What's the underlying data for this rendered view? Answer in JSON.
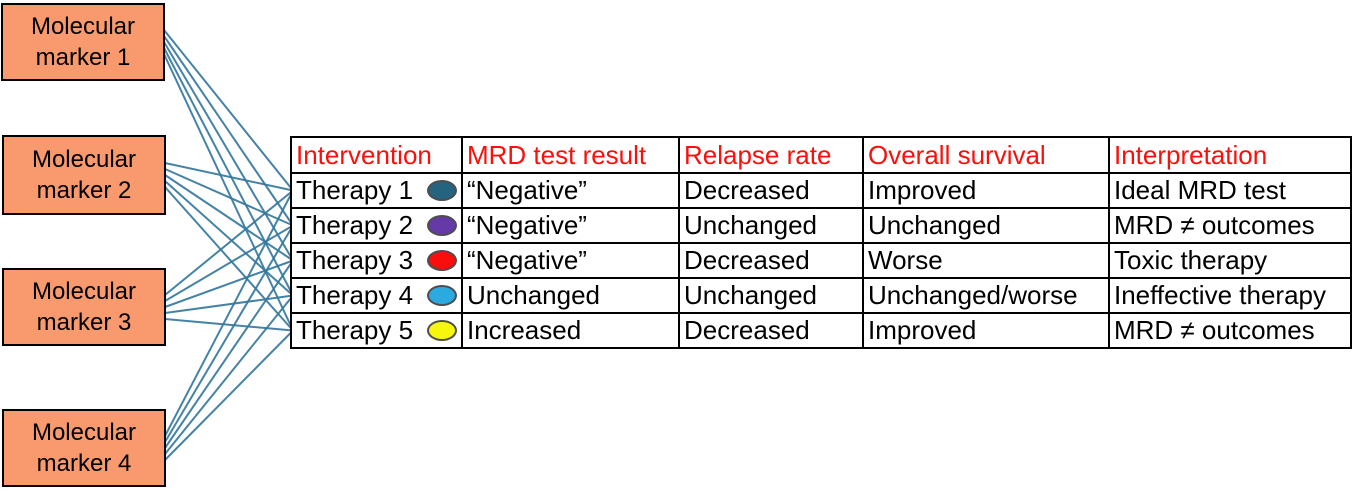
{
  "colors": {
    "marker_box_fill": "#F89A6E",
    "marker_box_border": "#000000",
    "header_text": "#FA0F0B",
    "body_text": "#000000",
    "table_border": "#000000",
    "connector": "#35789E"
  },
  "markers": [
    {
      "label": "Molecular marker 1"
    },
    {
      "label": "Molecular marker 2"
    },
    {
      "label": "Molecular marker 3"
    },
    {
      "label": "Molecular marker 4"
    }
  ],
  "table": {
    "headers": [
      "Intervention",
      "MRD test result",
      "Relapse rate",
      "Overall survival",
      "Interpretation"
    ],
    "rows": [
      {
        "intervention": "Therapy 1",
        "dot_color": "#26637F",
        "dot_name": "dark-teal",
        "mrd_test_result": "“Negative”",
        "relapse_rate": "Decreased",
        "overall_survival": "Improved",
        "interpretation": "Ideal MRD test"
      },
      {
        "intervention": "Therapy 2",
        "dot_color": "#6639A8",
        "dot_name": "purple",
        "mrd_test_result": "“Negative”",
        "relapse_rate": "Unchanged",
        "overall_survival": "Unchanged",
        "interpretation": "MRD ≠ outcomes"
      },
      {
        "intervention": "Therapy 3",
        "dot_color": "#F90D0D",
        "dot_name": "red",
        "mrd_test_result": "“Negative”",
        "relapse_rate": "Decreased",
        "overall_survival": "Worse",
        "interpretation": "Toxic therapy"
      },
      {
        "intervention": "Therapy 4",
        "dot_color": "#2BAAE2",
        "dot_name": "cyan",
        "mrd_test_result": "Unchanged",
        "relapse_rate": "Unchanged",
        "overall_survival": "Unchanged/worse",
        "interpretation": "Ineffective therapy"
      },
      {
        "intervention": "Therapy 5",
        "dot_color": "#F7F70D",
        "dot_name": "yellow",
        "mrd_test_result": "Increased",
        "relapse_rate": "Decreased",
        "overall_survival": "Improved",
        "interpretation": "MRD ≠ outcomes"
      }
    ]
  },
  "connections": [
    {
      "from_marker": 0,
      "to_therapies": [
        0,
        1,
        2,
        3,
        4
      ]
    },
    {
      "from_marker": 1,
      "to_therapies": [
        0,
        1,
        2,
        3,
        4
      ]
    },
    {
      "from_marker": 2,
      "to_therapies": [
        0,
        1,
        2,
        3,
        4
      ]
    },
    {
      "from_marker": 3,
      "to_therapies": [
        0,
        1,
        2,
        3,
        4
      ]
    }
  ]
}
